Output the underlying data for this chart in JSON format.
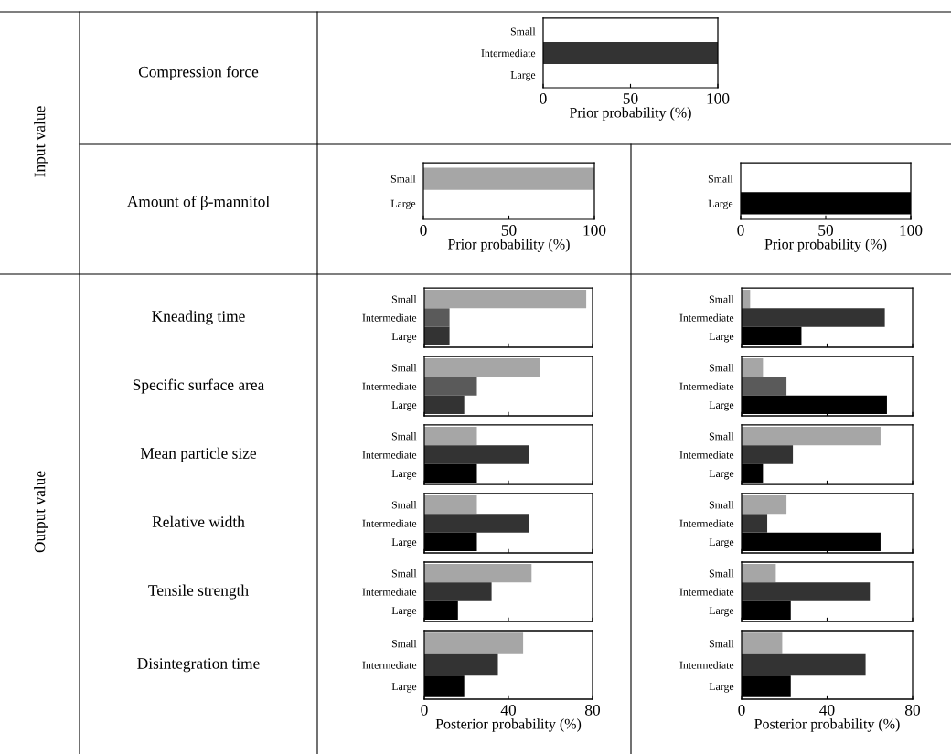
{
  "chart_data": [
    {
      "type": "other",
      "annotations": [
        "Input value",
        "Output value",
        "Compression force",
        "Amount of β-mannitol",
        "Kneading time",
        "Specific surface area",
        "Mean particle size",
        "Relative width",
        "Tensile strength",
        "Disintegration time"
      ]
    },
    {
      "type": "bar",
      "orientation": "horizontal",
      "categories": [
        "Small",
        "Intermediate",
        "Large"
      ],
      "values": [
        0,
        100,
        0
      ],
      "colors": [
        "#a6a6a6",
        "#333333",
        "#000000"
      ],
      "xlim": [
        0,
        100
      ],
      "xticks": [
        0,
        50,
        100
      ],
      "xlabel": "Prior probability (%)"
    },
    {
      "type": "bar",
      "orientation": "horizontal",
      "categories": [
        "Small",
        "Large"
      ],
      "values": [
        100,
        0
      ],
      "colors": [
        "#a6a6a6",
        "#000000"
      ],
      "xlim": [
        0,
        100
      ],
      "xticks": [
        0,
        50,
        100
      ],
      "xlabel": "Prior probability (%)"
    },
    {
      "type": "bar",
      "orientation": "horizontal",
      "categories": [
        "Small",
        "Large"
      ],
      "values": [
        0,
        100
      ],
      "colors": [
        "#a6a6a6",
        "#000000"
      ],
      "xlim": [
        0,
        100
      ],
      "xticks": [
        0,
        50,
        100
      ],
      "xlabel": "Prior probability (%)"
    },
    {
      "type": "bar",
      "orientation": "horizontal",
      "categories": [
        "Small",
        "Intermediate",
        "Large"
      ],
      "values": [
        77,
        12,
        12
      ],
      "colors": [
        "#a6a6a6",
        "#5a5a5a",
        "#333333"
      ],
      "xlim": [
        0,
        80
      ],
      "xticks": [
        0,
        40,
        80
      ],
      "tick_labels": "y"
    },
    {
      "type": "bar",
      "orientation": "horizontal",
      "categories": [
        "Small",
        "Intermediate",
        "Large"
      ],
      "values": [
        4,
        67,
        28
      ],
      "colors": [
        "#a6a6a6",
        "#333333",
        "#000000"
      ],
      "xlim": [
        0,
        80
      ],
      "xticks": [
        0,
        40,
        80
      ],
      "tick_labels": "y"
    },
    {
      "type": "bar",
      "orientation": "horizontal",
      "categories": [
        "Small",
        "Intermediate",
        "Large"
      ],
      "values": [
        55,
        25,
        19
      ],
      "colors": [
        "#a6a6a6",
        "#5a5a5a",
        "#333333"
      ],
      "xlim": [
        0,
        80
      ],
      "xticks": [
        0,
        40,
        80
      ],
      "tick_labels": "y"
    },
    {
      "type": "bar",
      "orientation": "horizontal",
      "categories": [
        "Small",
        "Intermediate",
        "Large"
      ],
      "values": [
        10,
        21,
        68
      ],
      "colors": [
        "#a6a6a6",
        "#5a5a5a",
        "#000000"
      ],
      "xlim": [
        0,
        80
      ],
      "xticks": [
        0,
        40,
        80
      ],
      "tick_labels": "y"
    },
    {
      "type": "bar",
      "orientation": "horizontal",
      "categories": [
        "Small",
        "Intermediate",
        "Large"
      ],
      "values": [
        25,
        50,
        25
      ],
      "colors": [
        "#a6a6a6",
        "#333333",
        "#000000"
      ],
      "xlim": [
        0,
        80
      ],
      "xticks": [
        0,
        40,
        80
      ],
      "tick_labels": "y"
    },
    {
      "type": "bar",
      "orientation": "horizontal",
      "categories": [
        "Small",
        "Intermediate",
        "Large"
      ],
      "values": [
        65,
        24,
        10
      ],
      "colors": [
        "#a6a6a6",
        "#333333",
        "#000000"
      ],
      "xlim": [
        0,
        80
      ],
      "xticks": [
        0,
        40,
        80
      ],
      "tick_labels": "y"
    },
    {
      "type": "bar",
      "orientation": "horizontal",
      "categories": [
        "Small",
        "Intermediate",
        "Large"
      ],
      "values": [
        25,
        50,
        25
      ],
      "colors": [
        "#a6a6a6",
        "#333333",
        "#000000"
      ],
      "xlim": [
        0,
        80
      ],
      "xticks": [
        0,
        40,
        80
      ],
      "tick_labels": "y"
    },
    {
      "type": "bar",
      "orientation": "horizontal",
      "categories": [
        "Small",
        "Intermediate",
        "Large"
      ],
      "values": [
        21,
        12,
        65
      ],
      "colors": [
        "#a6a6a6",
        "#333333",
        "#000000"
      ],
      "xlim": [
        0,
        80
      ],
      "xticks": [
        0,
        40,
        80
      ],
      "tick_labels": "y"
    },
    {
      "type": "bar",
      "orientation": "horizontal",
      "categories": [
        "Small",
        "Intermediate",
        "Large"
      ],
      "values": [
        51,
        32,
        16
      ],
      "colors": [
        "#a6a6a6",
        "#333333",
        "#000000"
      ],
      "xlim": [
        0,
        80
      ],
      "xticks": [
        0,
        40,
        80
      ],
      "tick_labels": "y"
    },
    {
      "type": "bar",
      "orientation": "horizontal",
      "categories": [
        "Small",
        "Intermediate",
        "Large"
      ],
      "values": [
        16,
        60,
        23
      ],
      "colors": [
        "#a6a6a6",
        "#333333",
        "#000000"
      ],
      "xlim": [
        0,
        80
      ],
      "xticks": [
        0,
        40,
        80
      ],
      "tick_labels": "y"
    },
    {
      "type": "bar",
      "orientation": "horizontal",
      "categories": [
        "Small",
        "Intermediate",
        "Large"
      ],
      "values": [
        47,
        35,
        19
      ],
      "colors": [
        "#a6a6a6",
        "#333333",
        "#000000"
      ],
      "xlim": [
        0,
        80
      ],
      "xticks": [
        0,
        40,
        80
      ],
      "xlabel": "Posterior probability (%)"
    },
    {
      "type": "bar",
      "orientation": "horizontal",
      "categories": [
        "Small",
        "Intermediate",
        "Large"
      ],
      "values": [
        19,
        58,
        23
      ],
      "colors": [
        "#a6a6a6",
        "#333333",
        "#000000"
      ],
      "xlim": [
        0,
        80
      ],
      "xticks": [
        0,
        40,
        80
      ],
      "xlabel": "Posterior probability (%)"
    }
  ]
}
